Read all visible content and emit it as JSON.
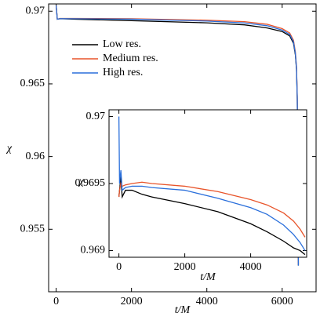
{
  "chart_data": [
    {
      "type": "line",
      "xlabel": "t/M",
      "ylabel": "χ",
      "x": [
        0,
        30,
        100,
        500,
        2000,
        4000,
        5000,
        5600,
        6000,
        6200,
        6300,
        6350,
        6380,
        6400,
        6420,
        6430
      ],
      "series": [
        {
          "name": "Low res.",
          "color": "#000000",
          "values": [
            0.9704,
            0.96945,
            0.96948,
            0.96945,
            0.96935,
            0.9692,
            0.96906,
            0.96885,
            0.9686,
            0.9683,
            0.9678,
            0.967,
            0.966,
            0.964,
            0.958,
            0.9525
          ]
        },
        {
          "name": "Medium res.",
          "color": "#e8542a",
          "values": [
            0.9704,
            0.96945,
            0.9695,
            0.9695,
            0.96948,
            0.96938,
            0.96928,
            0.9691,
            0.9688,
            0.9685,
            0.968,
            0.9672,
            0.9662,
            0.9642,
            0.9582,
            0.9526
          ]
        },
        {
          "name": "High res.",
          "color": "#2a6fdb",
          "values": [
            0.9704,
            0.96945,
            0.96949,
            0.96948,
            0.96945,
            0.96932,
            0.96919,
            0.969,
            0.9687,
            0.9684,
            0.9679,
            0.9671,
            0.9661,
            0.9641,
            0.9581,
            0.9525
          ]
        }
      ],
      "xlim": [
        -200,
        6900
      ],
      "xticks": [
        0,
        2000,
        4000,
        6000
      ],
      "ylim": [
        0.9507,
        0.9705
      ],
      "yticks": [
        0.97,
        0.965,
        0.96,
        0.955
      ],
      "legend": "upper left"
    },
    {
      "type": "line",
      "xlabel": "t/M",
      "ylabel": "χ",
      "x": [
        0,
        20,
        60,
        100,
        200,
        400,
        700,
        1000,
        2000,
        3000,
        4000,
        4500,
        5000,
        5300,
        5500,
        5650
      ],
      "series": [
        {
          "name": "Low res.",
          "color": "#000000",
          "values": [
            0.9694,
            0.96945,
            0.96955,
            0.9694,
            0.96945,
            0.96945,
            0.96942,
            0.9694,
            0.96935,
            0.96929,
            0.9692,
            0.96914,
            0.96907,
            0.96902,
            0.969,
            0.96897
          ]
        },
        {
          "name": "Medium res.",
          "color": "#e8542a",
          "values": [
            0.9694,
            0.96945,
            0.9695,
            0.96948,
            0.96949,
            0.9695,
            0.96951,
            0.9695,
            0.96948,
            0.96944,
            0.96938,
            0.96934,
            0.96928,
            0.96922,
            0.96916,
            0.9691
          ]
        },
        {
          "name": "High res.",
          "color": "#2a6fdb",
          "values": [
            0.97,
            0.9695,
            0.9696,
            0.96945,
            0.96947,
            0.96948,
            0.96948,
            0.96947,
            0.96945,
            0.96939,
            0.96932,
            0.96927,
            0.96919,
            0.96912,
            0.96906,
            0.969
          ]
        }
      ],
      "xlim": [
        -300,
        5700
      ],
      "xticks": [
        0,
        2000,
        4000
      ],
      "ylim": [
        0.96895,
        0.97005
      ],
      "yticks": [
        0.97,
        0.9695,
        0.969
      ]
    }
  ]
}
